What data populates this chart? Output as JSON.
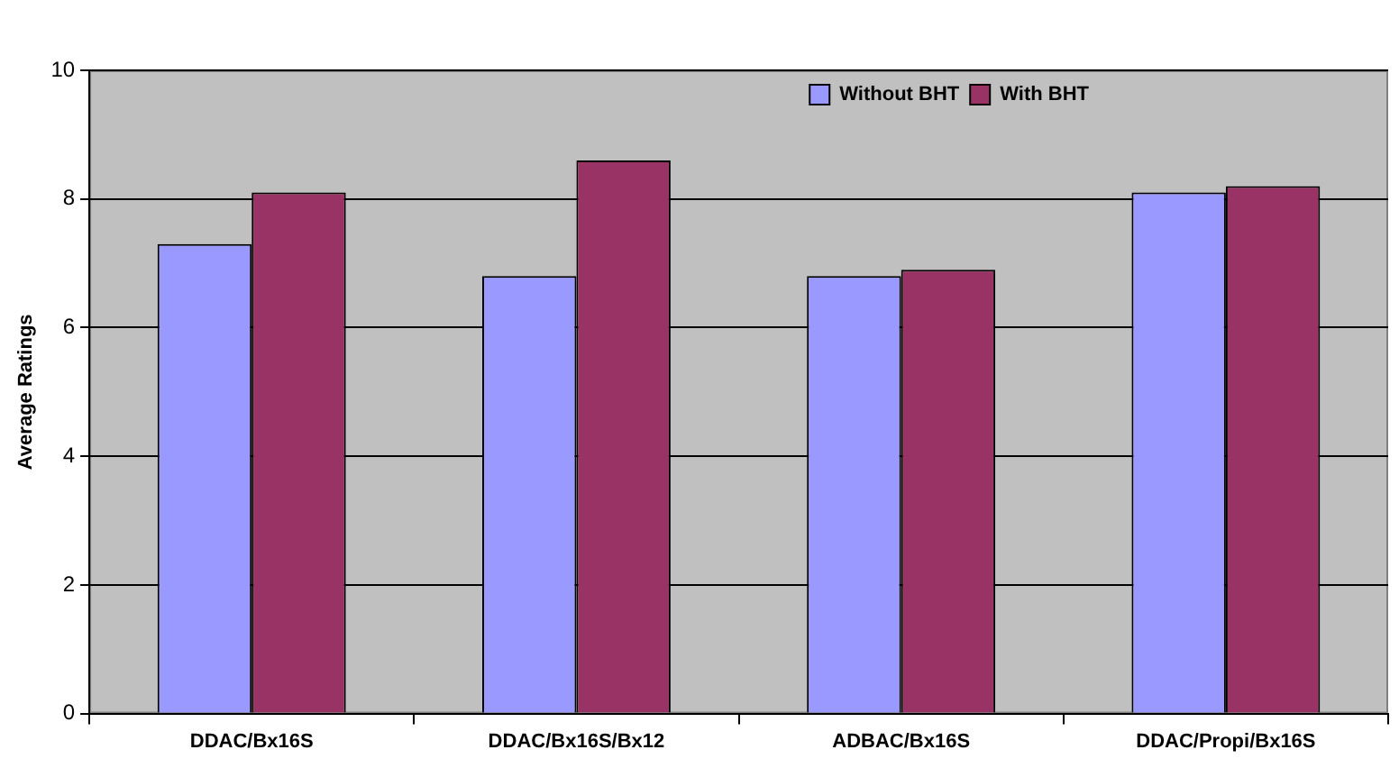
{
  "chart_data": {
    "type": "bar",
    "ylabel": "Average Ratings",
    "categories": [
      "DDAC/Bx16S",
      "DDAC/Bx16S/Bx12",
      "ADBAC/Bx16S",
      "DDAC/Propi/Bx16S"
    ],
    "series": [
      {
        "name": "Without BHT",
        "color": "#9999ff",
        "values": [
          7.3,
          6.8,
          6.8,
          8.1
        ]
      },
      {
        "name": "With BHT",
        "color": "#993366",
        "values": [
          8.1,
          8.6,
          6.9,
          8.2
        ]
      }
    ],
    "ylim": [
      0,
      10
    ],
    "yticks": [
      0,
      2,
      4,
      6,
      8,
      10
    ],
    "grid": "y",
    "legend": "top right"
  }
}
